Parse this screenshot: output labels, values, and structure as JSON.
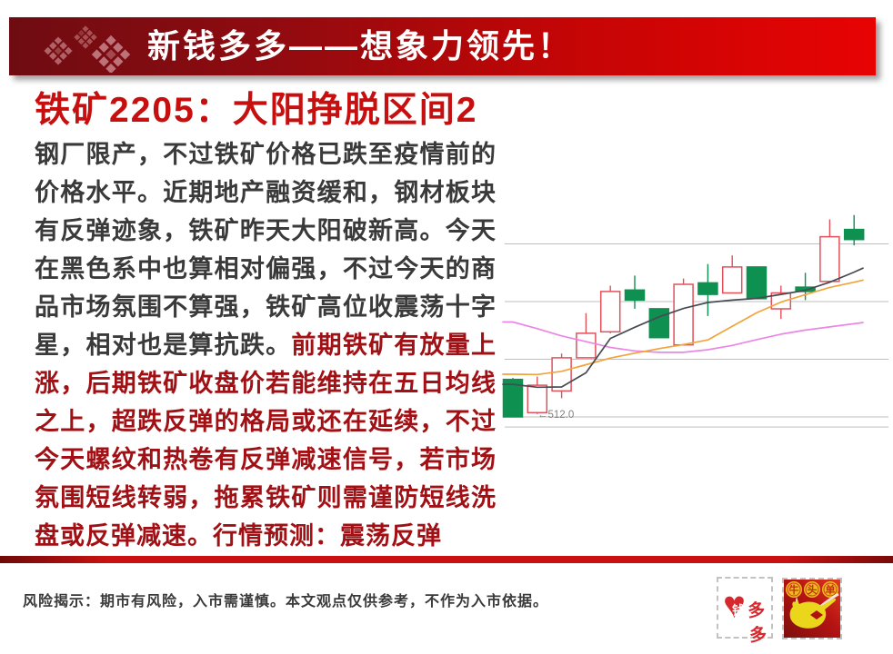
{
  "header": {
    "banner_title": "新钱多多——想象力领先！"
  },
  "article": {
    "title": "铁矿2205：大阳挣脱区间2",
    "paragraph_dark": "钢厂限产，不过铁矿价格已跌至疫情前的价格水平。近期地产融资缓和，钢材板块有反弹迹象，铁矿昨天大阳破新高。今天在黑色系中也算相对偏强，不过今天的商品市场氛围不算强，铁矿高位收震荡十字星，相对也是算抗跌。",
    "paragraph_red": "前期铁矿有放量上涨，后期铁矿收盘价若能维持在五日均线之上，超跌反弹的格局或还在延续，不过今天螺纹和热卷有反弹减速信号，若市场氛围短线转弱，拖累铁矿则需谨防短线洗盘或反弹减速。",
    "forecast": "行情预测：震荡反弹"
  },
  "footer": {
    "disclaimer": "风险揭示：期市有风险，入市需谨慎。本文观点仅供参考，不作为入市依据。",
    "stamp_qianduoduo": {
      "heart_char": "钱",
      "label": "多多"
    },
    "stamp_niutoudan": {
      "circle_chars": [
        "牛",
        "头",
        "单"
      ]
    }
  },
  "colors": {
    "brand_red_dark": "#6e0c12",
    "brand_red_bright": "#e80303",
    "title_red": "#c60f0f",
    "body_dark": "#3a3a3a",
    "body_red": "#a11014",
    "divider_red": "#c91111"
  },
  "chart_data": {
    "type": "candlestick",
    "title": "",
    "low_label": "←512.0",
    "low_label_price": 512.0,
    "ylim": [
      505,
      585
    ],
    "gridline_prices": [
      571,
      551,
      531,
      511,
      507.5
    ],
    "grid_on": true,
    "candles": [
      {
        "open": 524.0,
        "high": 524.5,
        "low": 511.0,
        "close": 511.0
      },
      {
        "open": 512.5,
        "high": 525.0,
        "low": 512.0,
        "close": 522.0
      },
      {
        "open": 520.0,
        "high": 533.0,
        "low": 517.5,
        "close": 531.5
      },
      {
        "open": 531.5,
        "high": 547.0,
        "low": 531.5,
        "close": 540.0
      },
      {
        "open": 540.5,
        "high": 556.5,
        "low": 540.0,
        "close": 554.5
      },
      {
        "open": 555.0,
        "high": 560.0,
        "low": 548.5,
        "close": 551.5
      },
      {
        "open": 548.5,
        "high": 548.5,
        "low": 538.5,
        "close": 538.5
      },
      {
        "open": 536.0,
        "high": 559.0,
        "low": 536.0,
        "close": 557.0
      },
      {
        "open": 557.5,
        "high": 564.0,
        "low": 546.0,
        "close": 553.5
      },
      {
        "open": 554.0,
        "high": 567.0,
        "low": 554.0,
        "close": 563.0
      },
      {
        "open": 563.0,
        "high": 563.0,
        "low": 552.0,
        "close": 552.0
      },
      {
        "open": 548.5,
        "high": 556.5,
        "low": 545.0,
        "close": 554.0
      },
      {
        "open": 556.0,
        "high": 561.0,
        "low": 551.5,
        "close": 554.5
      },
      {
        "open": 558.0,
        "high": 579.5,
        "low": 558.0,
        "close": 573.5
      },
      {
        "open": 576.0,
        "high": 581.0,
        "low": 570.5,
        "close": 572.5
      }
    ],
    "series": [
      {
        "name": "MA-fast-dark",
        "values": [
          522.3,
          521.3,
          521.4,
          526.3,
          538.2,
          542.1,
          545.7,
          548.6,
          550.7,
          551.5,
          552.1,
          553.5,
          554.9,
          557.7,
          561.2
        ]
      },
      {
        "name": "MA-mid-orange",
        "values": [
          525.8,
          525.7,
          526.8,
          529.1,
          531.4,
          533.1,
          534.7,
          536.1,
          537.7,
          542.4,
          547.1,
          550.8,
          553.4,
          555.9,
          557.7
        ]
      },
      {
        "name": "MA-slow-magenta",
        "values": [
          543.9,
          541.6,
          539.1,
          537.1,
          535.1,
          533.9,
          533.4,
          533.4,
          534.3,
          535.8,
          537.8,
          539.7,
          541.1,
          542.2,
          543.3
        ]
      }
    ],
    "colors": {
      "up": "#e0515c",
      "up_fill": "#ffffff",
      "down": "#0e9150",
      "ma_fast": "#474b52",
      "ma_mid": "#f2a33c",
      "ma_slow": "#ec86e4",
      "grid": "#bfbfbf",
      "label": "#808080"
    }
  }
}
